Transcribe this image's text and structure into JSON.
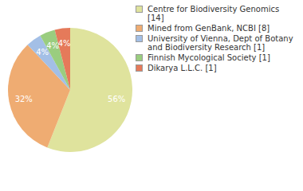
{
  "chart_data": {
    "type": "pie",
    "categories": [
      "Centre for Biodiversity Genomics [14]",
      "Mined from GenBank, NCBI [8]",
      "University of Vienna, Dept of Botany and Biodiversity Research [1]",
      "Finnish Mycological Society [1]",
      "Dikarya L.L.C. [1]"
    ],
    "values": [
      56,
      32,
      4,
      4,
      4
    ],
    "value_labels": [
      "56%",
      "32%",
      "4%",
      "4%",
      "4%"
    ],
    "data_labels": true,
    "colors": [
      "#dfe39d",
      "#efac72",
      "#a3bfe6",
      "#9acd7f",
      "#e57a5a"
    ],
    "legend": "right"
  }
}
